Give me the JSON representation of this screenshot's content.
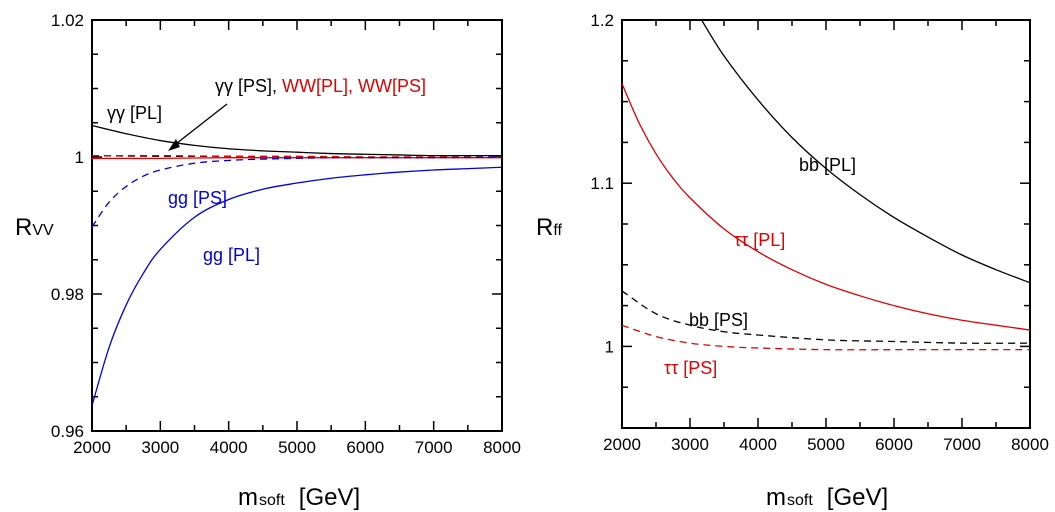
{
  "chart_data": [
    {
      "type": "line",
      "x_ticks": [
        "2000",
        "3000",
        "4000",
        "5000",
        "6000",
        "7000",
        "8000"
      ],
      "y_ticks": [
        "0.96",
        "0.98",
        "1",
        "1.02"
      ],
      "xlim": [
        2000,
        8000
      ],
      "ylim": [
        0.96,
        1.02
      ],
      "xlabel": {
        "main": "m",
        "sub": "soft",
        "unit": "[GeV]"
      },
      "ylabel": {
        "main": "R",
        "sub": "VV"
      },
      "annotations": [
        {
          "text": "γγ [PL]",
          "color": "#000000"
        },
        {
          "text": "γγ [PS], ",
          "color": "#000000"
        },
        {
          "text": "WW[PL], WW[PS]",
          "color": "#e00000"
        },
        {
          "text": "gg [PS]",
          "color": "#0000dd"
        },
        {
          "text": "gg [PL]",
          "color": "#0000dd"
        }
      ],
      "series": [
        {
          "color": "#000000",
          "dash": "solid",
          "x": [
            2000,
            2500,
            3000,
            3500,
            4000,
            4500,
            5000,
            5500,
            6000,
            6500,
            7000,
            7500,
            8000
          ],
          "y": [
            1.0046,
            1.0034,
            1.0024,
            1.0017,
            1.0012,
            1.0009,
            1.0007,
            1.0005,
            1.0004,
            1.0003,
            1.0002,
            1.0002,
            1.0002
          ]
        },
        {
          "color": "#000000",
          "dash": "dashed",
          "x": [
            2000,
            3000,
            4000,
            5000,
            6000,
            7000,
            8000
          ],
          "y": [
            1.0002,
            1.0001,
            1.0001,
            1.0,
            1.0,
            1.0,
            1.0
          ]
        },
        {
          "color": "#e00000",
          "dash": "solid",
          "x": [
            2000,
            3000,
            4000,
            5000,
            6000,
            7000,
            8000
          ],
          "y": [
            0.9998,
            0.9998,
            0.9999,
            0.9999,
            0.9999,
            0.9999,
            0.9999
          ]
        },
        {
          "color": "#e00000",
          "dash": "dashed",
          "x": [
            2000,
            3000,
            4000,
            5000,
            6000,
            7000,
            8000
          ],
          "y": [
            1.0002,
            1.0002,
            1.0001,
            1.0001,
            1.0,
            1.0,
            1.0
          ]
        },
        {
          "color": "#0000dd",
          "dash": "dashed",
          "x": [
            2000,
            2250,
            2500,
            2750,
            3000,
            3500,
            4000,
            4500,
            5000,
            5500,
            6000,
            7000,
            8000
          ],
          "y": [
            0.9898,
            0.9934,
            0.9957,
            0.9972,
            0.9981,
            0.9991,
            0.9995,
            0.9997,
            0.9998,
            0.9999,
            0.9999,
            0.9999,
            1.0
          ]
        },
        {
          "color": "#0000dd",
          "dash": "solid",
          "x": [
            2000,
            2250,
            2500,
            2750,
            3000,
            3500,
            4000,
            4500,
            5000,
            5500,
            6000,
            6500,
            7000,
            7500,
            8000
          ],
          "y": [
            0.9637,
            0.9722,
            0.9784,
            0.983,
            0.9865,
            0.9912,
            0.9938,
            0.9953,
            0.9962,
            0.9969,
            0.9974,
            0.9978,
            0.9981,
            0.9983,
            0.9985
          ]
        }
      ]
    },
    {
      "type": "line",
      "x_ticks": [
        "2000",
        "3000",
        "4000",
        "5000",
        "6000",
        "7000",
        "8000"
      ],
      "y_ticks": [
        "1",
        "1.1",
        "1.2"
      ],
      "xlim": [
        2000,
        8000
      ],
      "ylim": [
        0.95,
        1.2
      ],
      "xlabel": {
        "main": "m",
        "sub": "soft",
        "unit": "[GeV]"
      },
      "ylabel": {
        "main": "R",
        "sub": "ff"
      },
      "annotations": [
        {
          "text": "bb [PL]",
          "color": "#000000"
        },
        {
          "text": "ττ [PL]",
          "color": "#e00000"
        },
        {
          "text": "bb [PS]",
          "color": "#000000"
        },
        {
          "text": "ττ [PS]",
          "color": "#e00000"
        }
      ],
      "series": [
        {
          "color": "#000000",
          "dash": "solid",
          "x": [
            3170,
            3500,
            4000,
            4500,
            5000,
            5500,
            6000,
            6500,
            7000,
            7500,
            8000
          ],
          "y": [
            1.2,
            1.178,
            1.151,
            1.128,
            1.109,
            1.093,
            1.079,
            1.067,
            1.056,
            1.047,
            1.039
          ]
        },
        {
          "color": "#e00000",
          "dash": "solid",
          "x": [
            2000,
            2250,
            2500,
            2750,
            3000,
            3500,
            4000,
            4500,
            5000,
            5500,
            6000,
            6500,
            7000,
            7500,
            8000
          ],
          "y": [
            1.161,
            1.137,
            1.118,
            1.103,
            1.091,
            1.072,
            1.058,
            1.047,
            1.038,
            1.031,
            1.025,
            1.02,
            1.016,
            1.013,
            1.01
          ]
        },
        {
          "color": "#000000",
          "dash": "dashed",
          "x": [
            2000,
            2500,
            3000,
            3500,
            4000,
            5000,
            6000,
            7000,
            8000
          ],
          "y": [
            1.034,
            1.02,
            1.013,
            1.009,
            1.007,
            1.004,
            1.003,
            1.002,
            1.002
          ]
        },
        {
          "color": "#e00000",
          "dash": "dashed",
          "x": [
            2000,
            2500,
            3000,
            3500,
            4000,
            5000,
            6000,
            7000,
            8000
          ],
          "y": [
            1.013,
            1.006,
            1.002,
            1.0,
            0.999,
            0.998,
            0.998,
            0.998,
            0.998
          ]
        }
      ]
    }
  ]
}
